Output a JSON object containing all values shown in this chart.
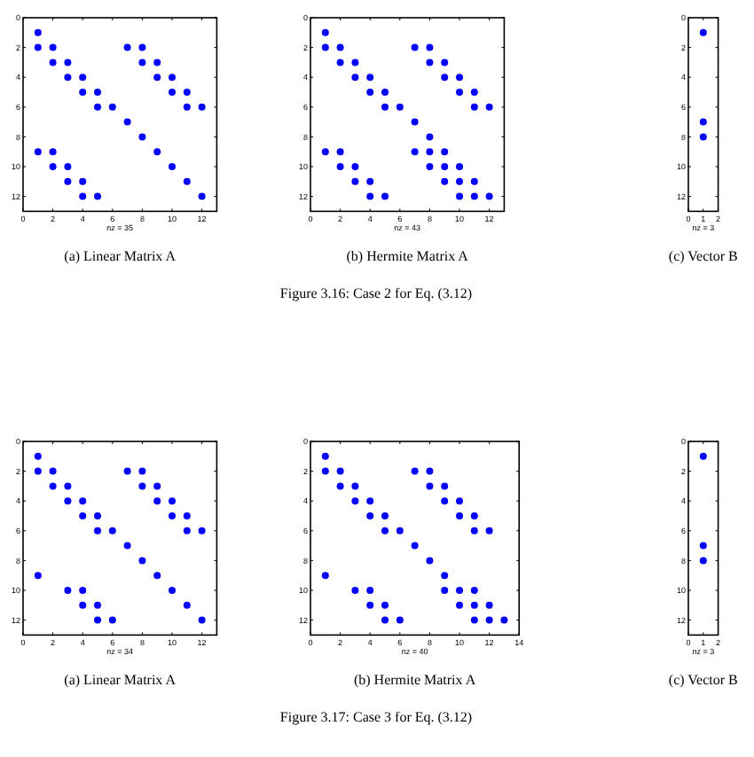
{
  "chart_data": [
    {
      "type": "scatter",
      "title": "(a) Linear Matrix A",
      "xlabel": "nz = 35",
      "xlim": [
        0,
        13
      ],
      "ylim": [
        13,
        0
      ],
      "xticks": [
        0,
        2,
        4,
        6,
        8,
        10,
        12
      ],
      "yticks": [
        0,
        2,
        4,
        6,
        8,
        10,
        12
      ],
      "marker": "circle",
      "grid": false,
      "annotations": [
        "Figure 3.16:  Case 2 for Eq. (3.12)"
      ],
      "series": [
        {
          "color": "#0000ff",
          "x": [
            1,
            1,
            2,
            7,
            8,
            2,
            3,
            8,
            9,
            3,
            4,
            9,
            10,
            4,
            5,
            10,
            11,
            5,
            6,
            11,
            12,
            7,
            8,
            1,
            2,
            9,
            2,
            3,
            10,
            3,
            4,
            11,
            4,
            5,
            12
          ],
          "values": [
            1,
            2,
            2,
            2,
            2,
            3,
            3,
            3,
            3,
            4,
            4,
            4,
            4,
            5,
            5,
            5,
            5,
            6,
            6,
            6,
            6,
            7,
            8,
            9,
            9,
            9,
            10,
            10,
            10,
            11,
            11,
            11,
            12,
            12,
            12
          ]
        }
      ]
    },
    {
      "type": "scatter",
      "title": "(b) Hermite Matrix A",
      "xlabel": "nz = 43",
      "xlim": [
        0,
        13
      ],
      "ylim": [
        13,
        0
      ],
      "xticks": [
        0,
        2,
        4,
        6,
        8,
        10,
        12
      ],
      "yticks": [
        0,
        2,
        4,
        6,
        8,
        10,
        12
      ],
      "marker": "circle",
      "grid": false,
      "series": [
        {
          "color": "#0000ff",
          "x": [
            1,
            1,
            2,
            7,
            8,
            2,
            3,
            8,
            9,
            3,
            4,
            9,
            10,
            4,
            5,
            10,
            11,
            5,
            6,
            11,
            12,
            7,
            8,
            1,
            2,
            7,
            8,
            9,
            2,
            3,
            8,
            9,
            10,
            3,
            4,
            9,
            10,
            11,
            4,
            5,
            10,
            11,
            12
          ],
          "values": [
            1,
            2,
            2,
            2,
            2,
            3,
            3,
            3,
            3,
            4,
            4,
            4,
            4,
            5,
            5,
            5,
            5,
            6,
            6,
            6,
            6,
            7,
            8,
            9,
            9,
            9,
            9,
            9,
            10,
            10,
            10,
            10,
            10,
            11,
            11,
            11,
            11,
            11,
            12,
            12,
            12,
            12,
            12
          ]
        }
      ]
    },
    {
      "type": "scatter",
      "title": "(c) Vector B",
      "xlabel": "nz = 3",
      "xlim": [
        0,
        2
      ],
      "ylim": [
        13,
        0
      ],
      "xticks": [
        0,
        1,
        2
      ],
      "yticks": [
        0,
        2,
        4,
        6,
        8,
        10,
        12
      ],
      "marker": "circle",
      "grid": false,
      "series": [
        {
          "color": "#0000ff",
          "x": [
            1,
            1,
            1
          ],
          "values": [
            1,
            7,
            8
          ]
        }
      ]
    },
    {
      "type": "scatter",
      "title": "(a) Linear Matrix A",
      "xlabel": "nz = 34",
      "xlim": [
        0,
        13
      ],
      "ylim": [
        13,
        0
      ],
      "xticks": [
        0,
        2,
        4,
        6,
        8,
        10,
        12
      ],
      "yticks": [
        0,
        2,
        4,
        6,
        8,
        10,
        12
      ],
      "marker": "circle",
      "grid": false,
      "annotations": [
        "Figure 3.17:  Case 3 for Eq. (3.12)"
      ],
      "series": [
        {
          "color": "#0000ff",
          "x": [
            1,
            1,
            2,
            7,
            8,
            2,
            3,
            8,
            9,
            3,
            4,
            9,
            10,
            4,
            5,
            10,
            11,
            5,
            6,
            11,
            12,
            7,
            8,
            1,
            9,
            3,
            4,
            10,
            4,
            5,
            11,
            5,
            6,
            12
          ],
          "values": [
            1,
            2,
            2,
            2,
            2,
            3,
            3,
            3,
            3,
            4,
            4,
            4,
            4,
            5,
            5,
            5,
            5,
            6,
            6,
            6,
            6,
            7,
            8,
            9,
            9,
            10,
            10,
            10,
            11,
            11,
            11,
            12,
            12,
            12
          ]
        }
      ]
    },
    {
      "type": "scatter",
      "title": "(b) Hermite Matrix A",
      "xlabel": "nz = 40",
      "xlim": [
        0,
        14
      ],
      "ylim": [
        13,
        0
      ],
      "xticks": [
        0,
        2,
        4,
        6,
        8,
        10,
        12,
        14
      ],
      "yticks": [
        0,
        2,
        4,
        6,
        8,
        10,
        12
      ],
      "marker": "circle",
      "grid": false,
      "series": [
        {
          "color": "#0000ff",
          "x": [
            1,
            1,
            2,
            7,
            8,
            2,
            3,
            8,
            9,
            3,
            4,
            9,
            10,
            4,
            5,
            10,
            11,
            5,
            6,
            11,
            12,
            7,
            8,
            1,
            9,
            3,
            4,
            9,
            10,
            11,
            4,
            5,
            10,
            11,
            12,
            5,
            6,
            11,
            12,
            13
          ],
          "values": [
            1,
            2,
            2,
            2,
            2,
            3,
            3,
            3,
            3,
            4,
            4,
            4,
            4,
            5,
            5,
            5,
            5,
            6,
            6,
            6,
            6,
            7,
            8,
            9,
            9,
            10,
            10,
            10,
            10,
            10,
            11,
            11,
            11,
            11,
            11,
            12,
            12,
            12,
            12,
            12
          ]
        }
      ]
    },
    {
      "type": "scatter",
      "title": "(c) Vector B",
      "xlabel": "nz = 3",
      "xlim": [
        0,
        2
      ],
      "ylim": [
        13,
        0
      ],
      "xticks": [
        0,
        1,
        2
      ],
      "yticks": [
        0,
        2,
        4,
        6,
        8,
        10,
        12
      ],
      "marker": "circle",
      "grid": false,
      "series": [
        {
          "color": "#0000ff",
          "x": [
            1,
            1,
            1
          ],
          "values": [
            1,
            7,
            8
          ]
        }
      ]
    }
  ]
}
